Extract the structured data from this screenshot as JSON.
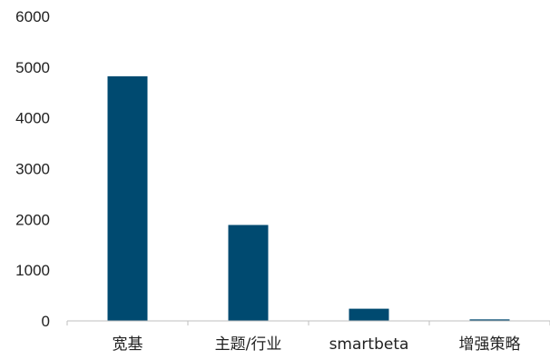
{
  "chart_data": {
    "type": "bar",
    "title": "",
    "xlabel": "",
    "ylabel": "",
    "categories": [
      "宽基",
      "主题/行业",
      "smartbeta",
      "增强策略"
    ],
    "values": [
      4820,
      1890,
      240,
      30
    ],
    "ylim": [
      0,
      6000
    ],
    "yticks": [
      0,
      1000,
      2000,
      3000,
      4000,
      5000,
      6000
    ],
    "grid": false,
    "legend": "none",
    "bar_color": "#004a70",
    "axis_color": "#bfbfbf"
  }
}
